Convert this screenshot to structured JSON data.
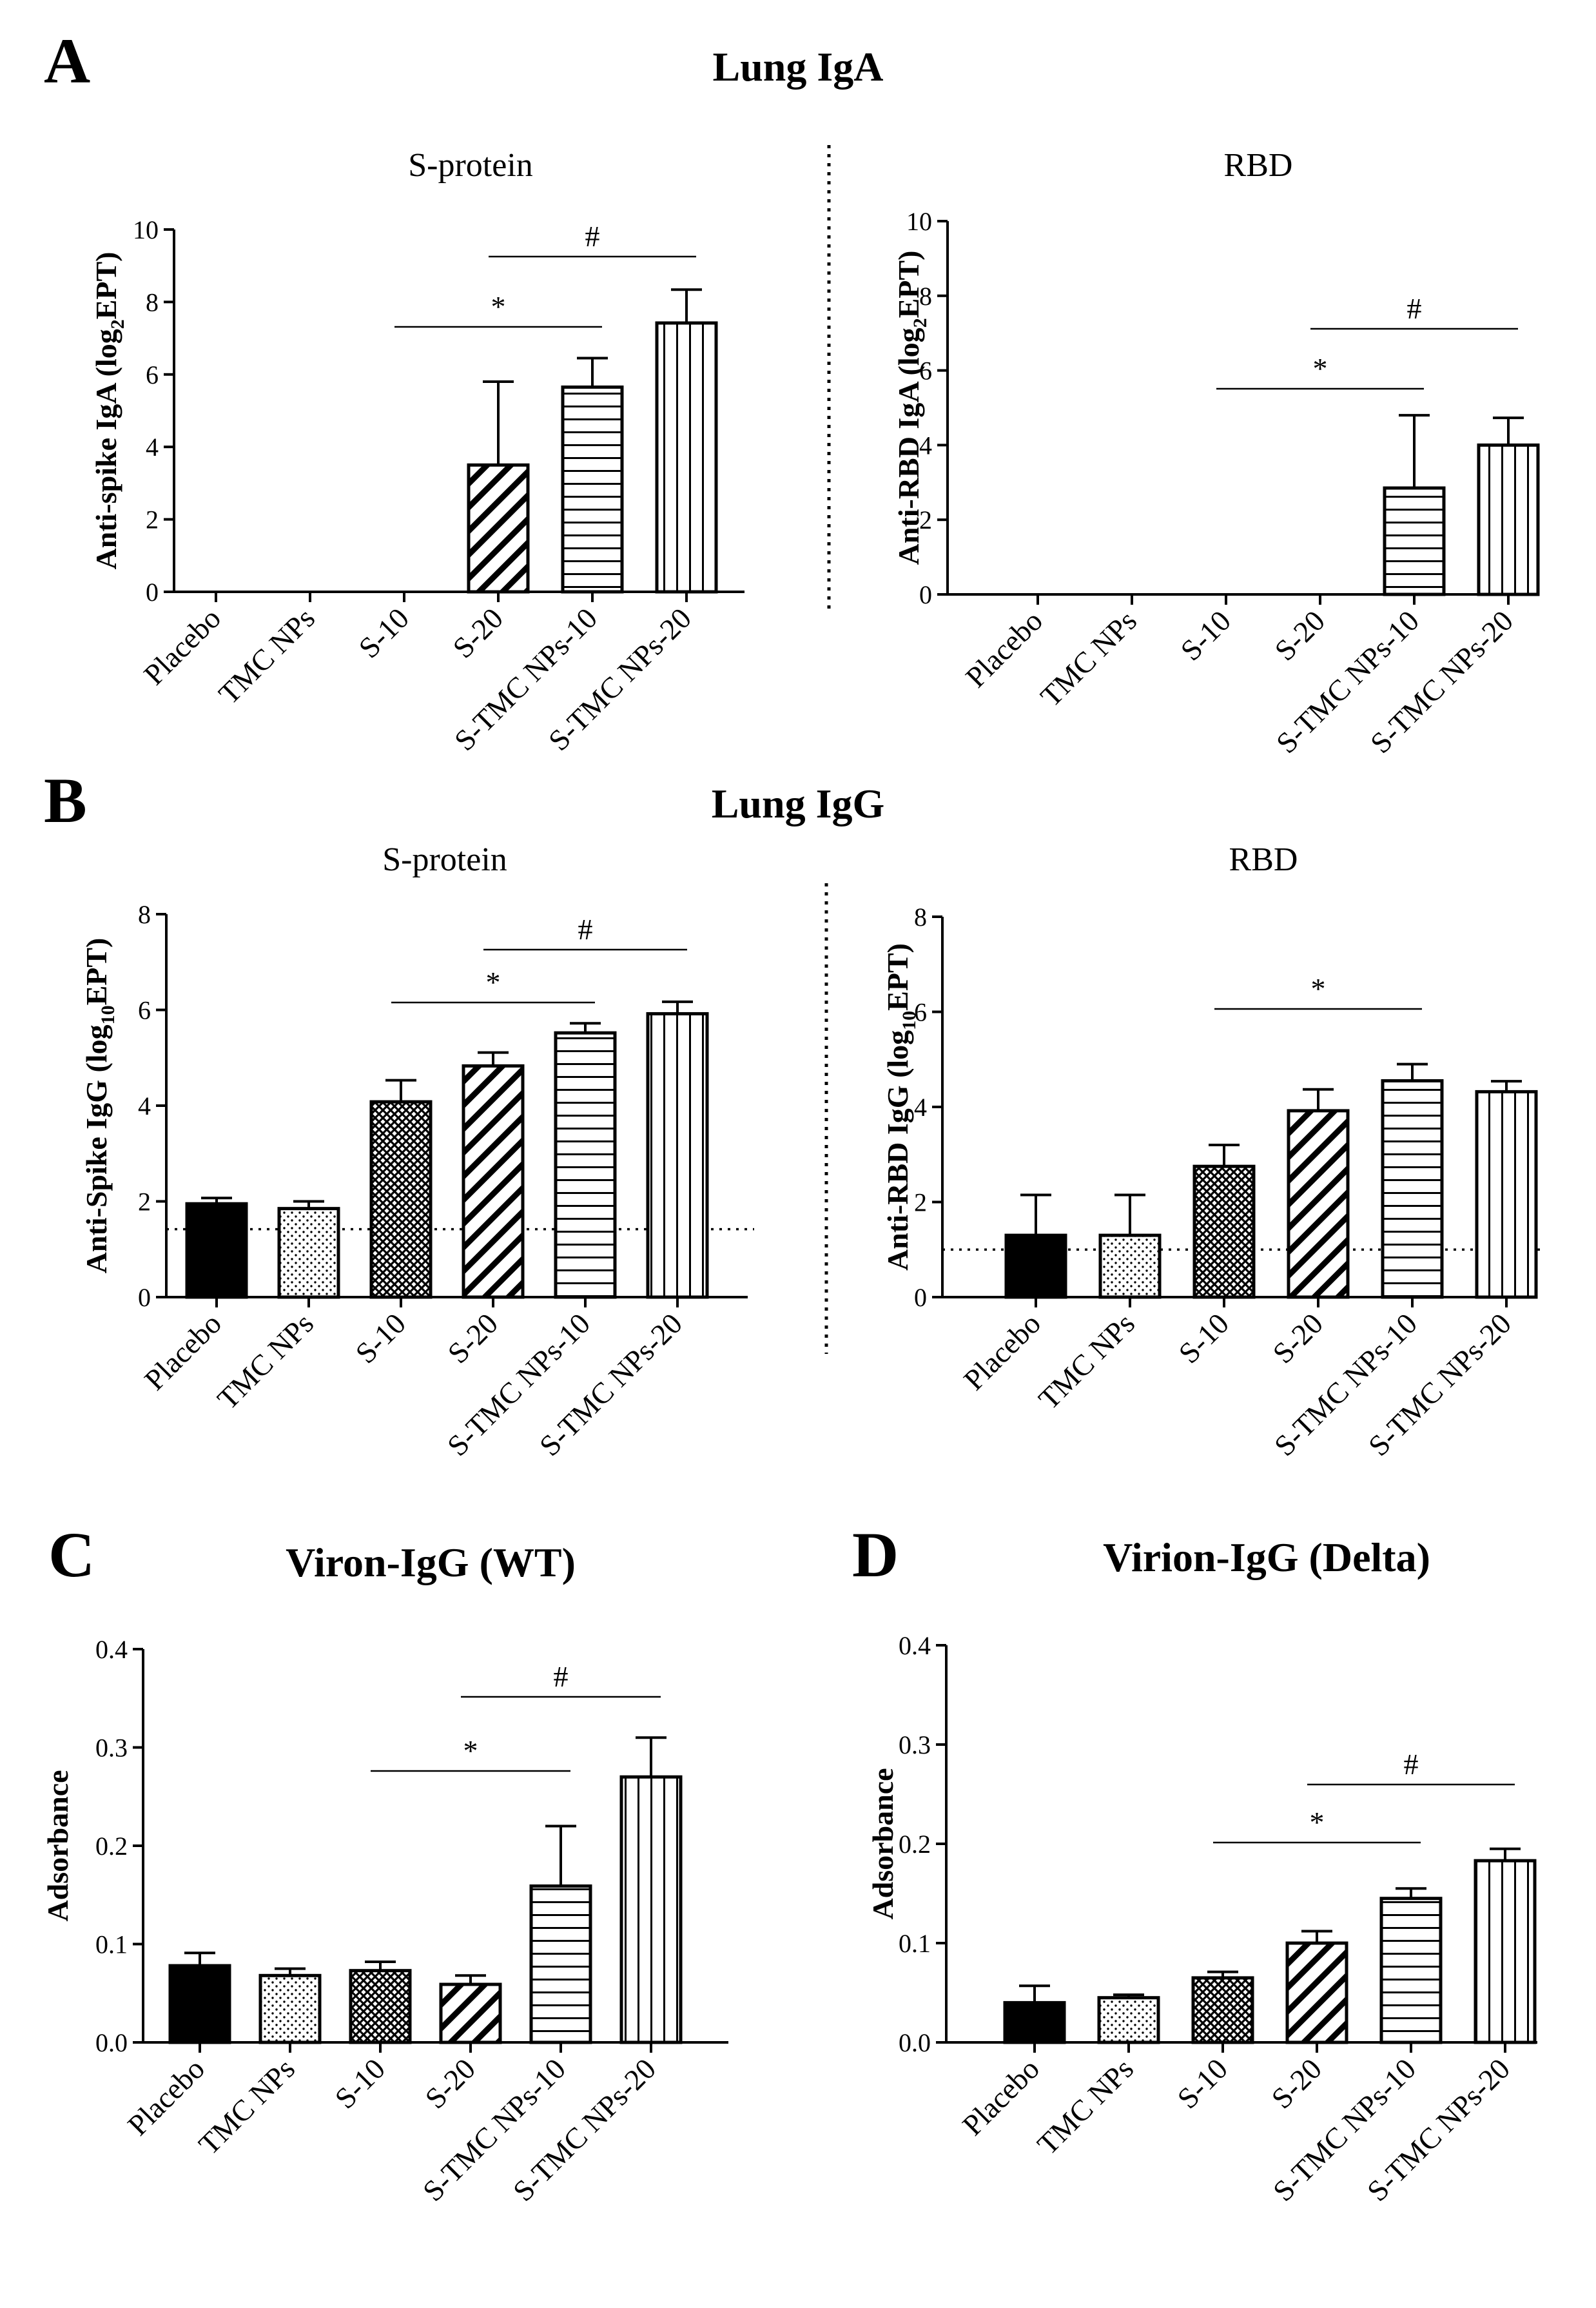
{
  "colors": {
    "ink": "#000000",
    "background": "#ffffff"
  },
  "sections": {
    "A": {
      "letter": "A",
      "title": "Lung IgA"
    },
    "B": {
      "letter": "B",
      "title": "Lung IgG"
    },
    "C": {
      "letter": "C"
    },
    "D": {
      "letter": "D"
    }
  },
  "chart_data": [
    {
      "type": "bar",
      "panel": "A",
      "subtitle": "S-protein",
      "categories": [
        "Placebo",
        "TMC NPs",
        "S-10",
        "S-20",
        "S-TMC NPs-10",
        "S-TMC NPs-20"
      ],
      "values": [
        0,
        0,
        0,
        3.5,
        5.65,
        7.42
      ],
      "errors": [
        0,
        0,
        0,
        2.3,
        0.8,
        0.92
      ],
      "patterns": [
        "none",
        "none",
        "none",
        "diagonal",
        "horizontal",
        "vertical"
      ],
      "ylabel_main": "Anti-spike IgA (log",
      "ylabel_sub": "2",
      "ylabel_end": "EPT)",
      "ylim": [
        0,
        10
      ],
      "yticks": [
        0,
        2,
        4,
        6,
        8,
        10
      ],
      "baseline": null,
      "significance": [
        {
          "label": "*",
          "from": "S-10",
          "to": "S-TMC NPs-10"
        },
        {
          "label": "#",
          "from": "S-20",
          "to": "S-TMC NPs-20"
        }
      ]
    },
    {
      "type": "bar",
      "panel": "A",
      "subtitle": "RBD",
      "categories": [
        "Placebo",
        "TMC NPs",
        "S-10",
        "S-20",
        "S-TMC NPs-10",
        "S-TMC NPs-20"
      ],
      "values": [
        0,
        0,
        0,
        0,
        2.85,
        4.0
      ],
      "errors": [
        0,
        0,
        0,
        0,
        1.95,
        0.73
      ],
      "patterns": [
        "none",
        "none",
        "none",
        "none",
        "horizontal",
        "vertical"
      ],
      "ylabel_main": "Anti-RBD IgA (log",
      "ylabel_sub": "2",
      "ylabel_end": "EPT)",
      "ylim": [
        0,
        10
      ],
      "yticks": [
        0,
        2,
        4,
        6,
        8,
        10
      ],
      "baseline": null,
      "significance": [
        {
          "label": "*",
          "from": "S-10",
          "to": "S-TMC NPs-10"
        },
        {
          "label": "#",
          "from": "S-20",
          "to": "S-TMC NPs-20"
        }
      ]
    },
    {
      "type": "bar",
      "panel": "B",
      "subtitle": "S-protein",
      "categories": [
        "Placebo",
        "TMC NPs",
        "S-10",
        "S-20",
        "S-TMC NPs-10",
        "S-TMC NPs-20"
      ],
      "values": [
        1.95,
        1.85,
        4.08,
        4.83,
        5.52,
        5.92
      ],
      "errors": [
        0.12,
        0.15,
        0.45,
        0.28,
        0.2,
        0.25
      ],
      "patterns": [
        "solid",
        "dots",
        "cross",
        "diagonal",
        "horizontal",
        "vertical"
      ],
      "ylabel_main": "Anti-Spike IgG (log",
      "ylabel_sub": "10",
      "ylabel_end": "EPT)",
      "ylim": [
        0,
        8
      ],
      "yticks": [
        0,
        2,
        4,
        6,
        8
      ],
      "baseline": 1.42,
      "significance": [
        {
          "label": "*",
          "from": "S-10",
          "to": "S-TMC NPs-10"
        },
        {
          "label": "#",
          "from": "S-20",
          "to": "S-TMC NPs-20"
        }
      ]
    },
    {
      "type": "bar",
      "panel": "B",
      "subtitle": "RBD",
      "categories": [
        "Placebo",
        "TMC NPs",
        "S-10",
        "S-20",
        "S-TMC NPs-10",
        "S-TMC NPs-20"
      ],
      "values": [
        1.3,
        1.3,
        2.75,
        3.92,
        4.55,
        4.32
      ],
      "errors": [
        0.85,
        0.85,
        0.45,
        0.45,
        0.35,
        0.22
      ],
      "patterns": [
        "solid",
        "dots",
        "cross",
        "diagonal",
        "horizontal",
        "vertical"
      ],
      "ylabel_main": "Anti-RBD IgG (log",
      "ylabel_sub": "10",
      "ylabel_end": "EPT)",
      "ylim": [
        0,
        8
      ],
      "yticks": [
        0,
        2,
        4,
        6,
        8
      ],
      "baseline": 1.0,
      "significance": [
        {
          "label": "*",
          "from": "S-10",
          "to": "S-TMC NPs-10"
        }
      ]
    },
    {
      "type": "bar",
      "panel": "C",
      "title": "Viron-IgG (WT)",
      "categories": [
        "Placebo",
        "TMC NPs",
        "S-10",
        "S-20",
        "S-TMC NPs-10",
        "S-TMC NPs-20"
      ],
      "values": [
        0.078,
        0.068,
        0.073,
        0.059,
        0.159,
        0.27
      ],
      "errors": [
        0.013,
        0.007,
        0.009,
        0.009,
        0.061,
        0.04
      ],
      "patterns": [
        "solid",
        "dots",
        "cross",
        "diagonal",
        "horizontal",
        "vertical"
      ],
      "ylabel_main": "Adsorbance",
      "ylim": [
        0,
        0.4
      ],
      "yticks": [
        "0.0",
        "0.1",
        "0.2",
        "0.3",
        "0.4"
      ],
      "baseline": null,
      "significance": [
        {
          "label": "*",
          "from": "S-10",
          "to": "S-TMC NPs-10"
        },
        {
          "label": "#",
          "from": "S-20",
          "to": "S-TMC NPs-20"
        }
      ]
    },
    {
      "type": "bar",
      "panel": "D",
      "title": "Virion-IgG (Delta)",
      "categories": [
        "Placebo",
        "TMC NPs",
        "S-10",
        "S-20",
        "S-TMC NPs-10",
        "S-TMC NPs-20"
      ],
      "values": [
        0.04,
        0.045,
        0.065,
        0.1,
        0.145,
        0.183
      ],
      "errors": [
        0.017,
        0.003,
        0.006,
        0.012,
        0.01,
        0.012
      ],
      "patterns": [
        "solid",
        "dots",
        "cross",
        "diagonal",
        "horizontal",
        "vertical"
      ],
      "ylabel_main": "Adsorbance",
      "ylim": [
        0,
        0.4
      ],
      "yticks": [
        "0.0",
        "0.1",
        "0.2",
        "0.3",
        "0.4"
      ],
      "baseline": null,
      "significance": [
        {
          "label": "*",
          "from": "S-10",
          "to": "S-TMC NPs-10"
        },
        {
          "label": "#",
          "from": "S-20",
          "to": "S-TMC NPs-20"
        }
      ]
    }
  ]
}
